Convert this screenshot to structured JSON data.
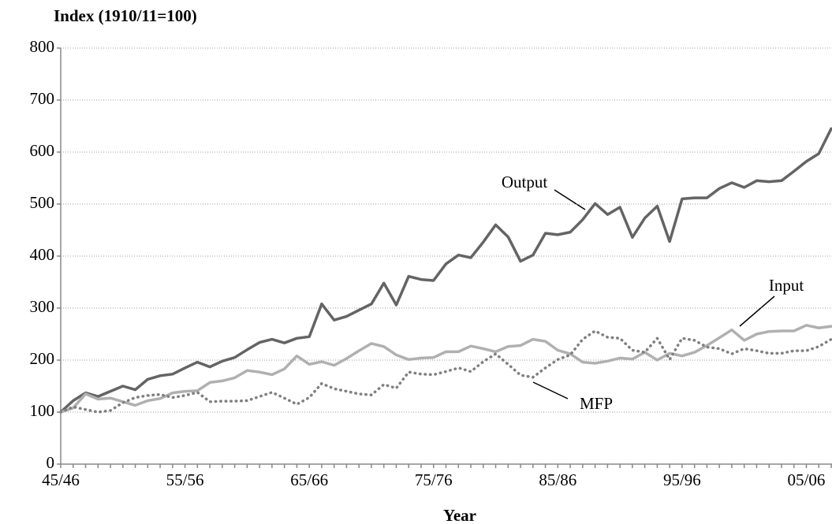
{
  "chart_data": {
    "type": "line",
    "title": "Index (1910/11=100)",
    "x_label": "Year",
    "categories": [
      "45/46",
      null,
      null,
      null,
      null,
      null,
      null,
      null,
      null,
      null,
      "55/56",
      null,
      null,
      null,
      null,
      null,
      null,
      null,
      null,
      null,
      "65/66",
      null,
      null,
      null,
      null,
      null,
      null,
      null,
      null,
      null,
      "75/76",
      null,
      null,
      null,
      null,
      null,
      null,
      null,
      null,
      null,
      "85/86",
      null,
      null,
      null,
      null,
      null,
      null,
      null,
      null,
      null,
      "95/96",
      null,
      null,
      null,
      null,
      null,
      null,
      null,
      null,
      null,
      "05/06",
      null,
      null
    ],
    "series": [
      {
        "name": "Output",
        "color": "#646464",
        "dash": "solid",
        "values": [
          100,
          122,
          137,
          130,
          140,
          150,
          143,
          163,
          170,
          173,
          185,
          196,
          187,
          198,
          205,
          220,
          234,
          240,
          233,
          242,
          245,
          308,
          277,
          284,
          296,
          308,
          348,
          306,
          361,
          355,
          353,
          385,
          402,
          397,
          427,
          460,
          437,
          390,
          402,
          444,
          441,
          446,
          470,
          501,
          480,
          494,
          436,
          473,
          496,
          428,
          510,
          512,
          512,
          530,
          541,
          532,
          545,
          543,
          545,
          563,
          582,
          597,
          645
        ]
      },
      {
        "name": "Input",
        "color": "#b0b0b0",
        "dash": "solid",
        "values": [
          100,
          108,
          135,
          125,
          127,
          120,
          113,
          122,
          126,
          137,
          140,
          141,
          157,
          160,
          166,
          180,
          177,
          172,
          183,
          208,
          192,
          197,
          190,
          203,
          218,
          232,
          226,
          210,
          201,
          204,
          205,
          216,
          216,
          227,
          222,
          216,
          226,
          228,
          240,
          236,
          219,
          212,
          196,
          194,
          198,
          204,
          202,
          215,
          200,
          213,
          208,
          215,
          228,
          243,
          258,
          238,
          250,
          255,
          256,
          256,
          267,
          262,
          265
        ]
      },
      {
        "name": "MFP",
        "color": "#808080",
        "dash": "dotted",
        "values": [
          100,
          110,
          105,
          100,
          103,
          118,
          128,
          132,
          134,
          128,
          132,
          138,
          120,
          121,
          121,
          122,
          130,
          138,
          127,
          115,
          128,
          155,
          145,
          140,
          135,
          133,
          153,
          146,
          177,
          173,
          172,
          178,
          185,
          178,
          197,
          212,
          192,
          171,
          167,
          185,
          201,
          210,
          240,
          256,
          244,
          242,
          219,
          215,
          242,
          201,
          242,
          238,
          225,
          222,
          212,
          222,
          218,
          213,
          213,
          218,
          218,
          226,
          240
        ]
      }
    ],
    "ylim": [
      0,
      800
    ],
    "yticks": [
      0,
      100,
      200,
      300,
      400,
      500,
      600,
      700,
      800
    ],
    "grid": true
  }
}
